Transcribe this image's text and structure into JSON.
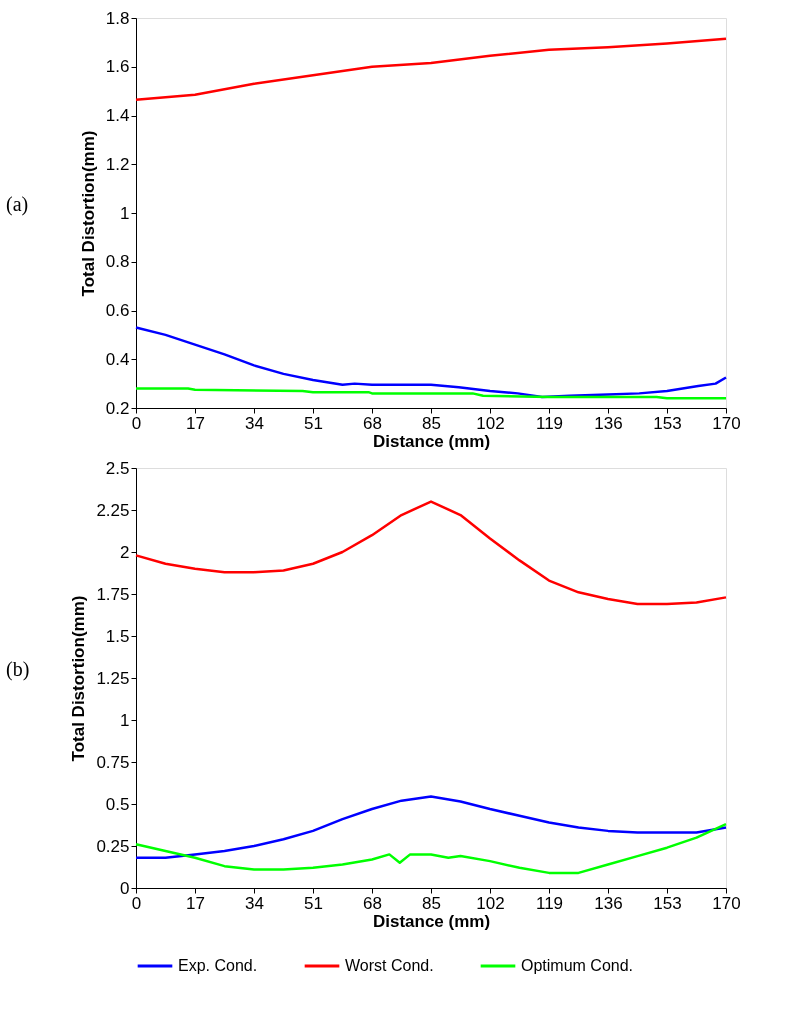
{
  "chart_data": [
    {
      "type": "line",
      "xlabel": "Distance (mm)",
      "ylabel": "Total Distortion(mm)",
      "annotations": [
        "(a)"
      ],
      "xlim": [
        0,
        170
      ],
      "xticks": [
        0,
        17,
        34,
        51,
        68,
        85,
        102,
        119,
        136,
        153,
        170
      ],
      "ylim": [
        0.2,
        1.8
      ],
      "yticks": [
        0.2,
        0.4,
        0.6,
        0.8,
        1,
        1.2,
        1.4,
        1.6,
        1.8
      ],
      "grid": false,
      "marker": "none",
      "line_style": "solid",
      "tick_labels": true,
      "series": [
        {
          "color": "#0000ff",
          "x": [
            0,
            8.5,
            17,
            25.5,
            34,
            42.5,
            51,
            59.5,
            63,
            68,
            85,
            93,
            102,
            110,
            117,
            125,
            136,
            145,
            153,
            162,
            167,
            170
          ],
          "values": [
            0.53,
            0.5,
            0.46,
            0.42,
            0.375,
            0.34,
            0.315,
            0.295,
            0.3,
            0.295,
            0.295,
            0.285,
            0.27,
            0.26,
            0.245,
            0.25,
            0.255,
            0.26,
            0.27,
            0.29,
            0.3,
            0.325
          ]
        },
        {
          "color": "#ff0000",
          "x": [
            0,
            17,
            34,
            51,
            68,
            85,
            102,
            119,
            136,
            153,
            170
          ],
          "values": [
            1.465,
            1.485,
            1.53,
            1.565,
            1.6,
            1.615,
            1.645,
            1.67,
            1.68,
            1.695,
            1.715
          ]
        },
        {
          "color": "#00ff00",
          "x": [
            0,
            15,
            17,
            48,
            51,
            67,
            68,
            97,
            100,
            119,
            150,
            153,
            170
          ],
          "values": [
            0.28,
            0.28,
            0.275,
            0.27,
            0.265,
            0.265,
            0.26,
            0.26,
            0.25,
            0.245,
            0.245,
            0.24,
            0.24
          ]
        }
      ]
    },
    {
      "type": "line",
      "xlabel": "Distance (mm)",
      "ylabel": "Total Distortion(mm)",
      "annotations": [
        "(b)"
      ],
      "xlim": [
        0,
        170
      ],
      "xticks": [
        0,
        17,
        34,
        51,
        68,
        85,
        102,
        119,
        136,
        153,
        170
      ],
      "ylim": [
        0,
        2.5
      ],
      "yticks": [
        0,
        0.25,
        0.5,
        0.75,
        1,
        1.25,
        1.5,
        1.75,
        2,
        2.25,
        2.5
      ],
      "grid": false,
      "legend": "bottom",
      "marker": "none",
      "line_style": "solid",
      "series": [
        {
          "name": "Exp. Cond.",
          "color": "#0000ff",
          "x": [
            0,
            8.5,
            17,
            25.5,
            34,
            42.5,
            51,
            59.5,
            68,
            76.5,
            85,
            93.5,
            102,
            110.5,
            119,
            127.5,
            136,
            144.5,
            153,
            161.5,
            170
          ],
          "values": [
            0.18,
            0.18,
            0.2,
            0.22,
            0.25,
            0.29,
            0.34,
            0.41,
            0.47,
            0.52,
            0.545,
            0.515,
            0.47,
            0.43,
            0.39,
            0.36,
            0.34,
            0.33,
            0.33,
            0.33,
            0.36
          ]
        },
        {
          "name": "Worst Cond.",
          "color": "#ff0000",
          "x": [
            0,
            8.5,
            17,
            25.5,
            34,
            42.5,
            51,
            59.5,
            68,
            76.5,
            85,
            93.5,
            102,
            110.5,
            119,
            127.5,
            136,
            144.5,
            153,
            161.5,
            170
          ],
          "values": [
            1.98,
            1.93,
            1.9,
            1.88,
            1.88,
            1.89,
            1.93,
            2.0,
            2.1,
            2.22,
            2.3,
            2.22,
            2.08,
            1.95,
            1.83,
            1.76,
            1.72,
            1.69,
            1.69,
            1.7,
            1.73
          ]
        },
        {
          "name": "Optimum Cond.",
          "color": "#00ff00",
          "x": [
            0,
            8.5,
            17,
            25.5,
            34,
            42.5,
            51,
            59.5,
            68,
            73,
            76,
            79,
            85,
            90,
            93.5,
            102,
            110.5,
            119,
            127.5,
            136,
            144.5,
            153,
            161.5,
            170
          ],
          "values": [
            0.26,
            0.22,
            0.18,
            0.13,
            0.11,
            0.11,
            0.12,
            0.14,
            0.17,
            0.2,
            0.15,
            0.2,
            0.2,
            0.18,
            0.19,
            0.16,
            0.12,
            0.09,
            0.09,
            0.14,
            0.19,
            0.24,
            0.3,
            0.38
          ]
        }
      ]
    }
  ]
}
